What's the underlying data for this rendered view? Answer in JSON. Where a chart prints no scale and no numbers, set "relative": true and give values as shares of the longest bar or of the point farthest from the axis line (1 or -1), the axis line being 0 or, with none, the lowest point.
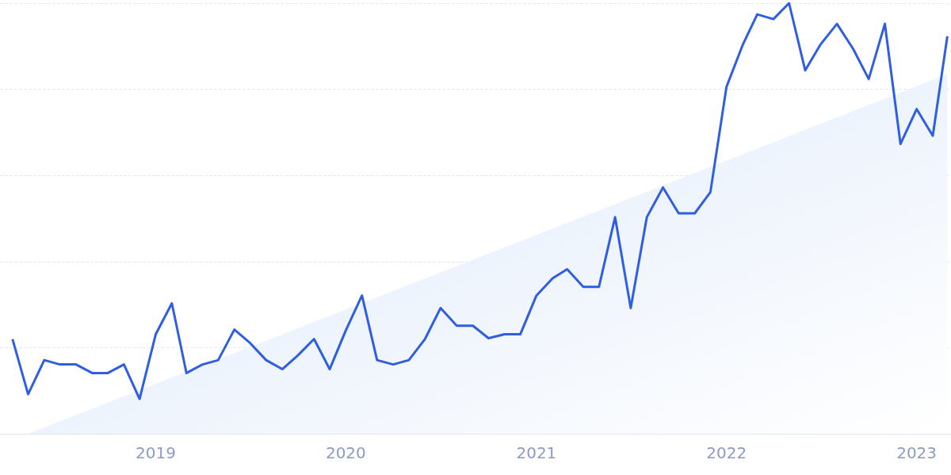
{
  "chart_data": {
    "type": "line",
    "relative": true,
    "grid": "y",
    "marker": "none",
    "line_style": "solid",
    "xlim": [
      "2018-03-08",
      "2023-03-08"
    ],
    "xticks": [
      "2019",
      "2020",
      "2021",
      "2022",
      "2023"
    ],
    "x": [
      "2018-04",
      "2018-05",
      "2018-06",
      "2018-07",
      "2018-08",
      "2018-09",
      "2018-10",
      "2018-11",
      "2018-12",
      "2019-01",
      "2019-02",
      "2019-03",
      "2019-04",
      "2019-05",
      "2019-06",
      "2019-07",
      "2019-08",
      "2019-09",
      "2019-10",
      "2019-11",
      "2019-12",
      "2020-01",
      "2020-02",
      "2020-03",
      "2020-04",
      "2020-05",
      "2020-06",
      "2020-07",
      "2020-08",
      "2020-09",
      "2020-10",
      "2020-11",
      "2020-12",
      "2021-01",
      "2021-02",
      "2021-03",
      "2021-04",
      "2021-05",
      "2021-06",
      "2021-07",
      "2021-08",
      "2021-09",
      "2021-10",
      "2021-11",
      "2021-12",
      "2022-01",
      "2022-02",
      "2022-03",
      "2022-04",
      "2022-05",
      "2022-06",
      "2022-07",
      "2022-08",
      "2022-09",
      "2022-10",
      "2022-11",
      "2022-12",
      "2023-01",
      "2023-02",
      "2023-03"
    ],
    "series": [
      {
        "color": "#2f5fe0",
        "values": [
          0.22,
          0.092,
          0.171,
          0.161,
          0.161,
          0.141,
          0.141,
          0.161,
          0.081,
          0.231,
          0.303,
          0.141,
          0.161,
          0.171,
          0.242,
          0.211,
          0.171,
          0.15,
          0.182,
          0.22,
          0.15,
          0.24,
          0.321,
          0.171,
          0.161,
          0.171,
          0.22,
          0.292,
          0.251,
          0.251,
          0.222,
          0.231,
          0.231,
          0.321,
          0.361,
          0.382,
          0.341,
          0.341,
          0.503,
          0.292,
          0.503,
          0.572,
          0.512,
          0.512,
          0.561,
          0.806,
          0.903,
          0.974,
          0.963,
          1,
          0.844,
          0.905,
          0.952,
          0.894,
          0.824,
          0.952,
          0.673,
          0.754,
          0.692,
          0.923
        ]
      },
      {
        "type": "area",
        "color": "#dce8fa",
        "x": [
          "2018-05",
          "2023-03"
        ],
        "values": [
          0,
          0.835
        ]
      }
    ]
  }
}
